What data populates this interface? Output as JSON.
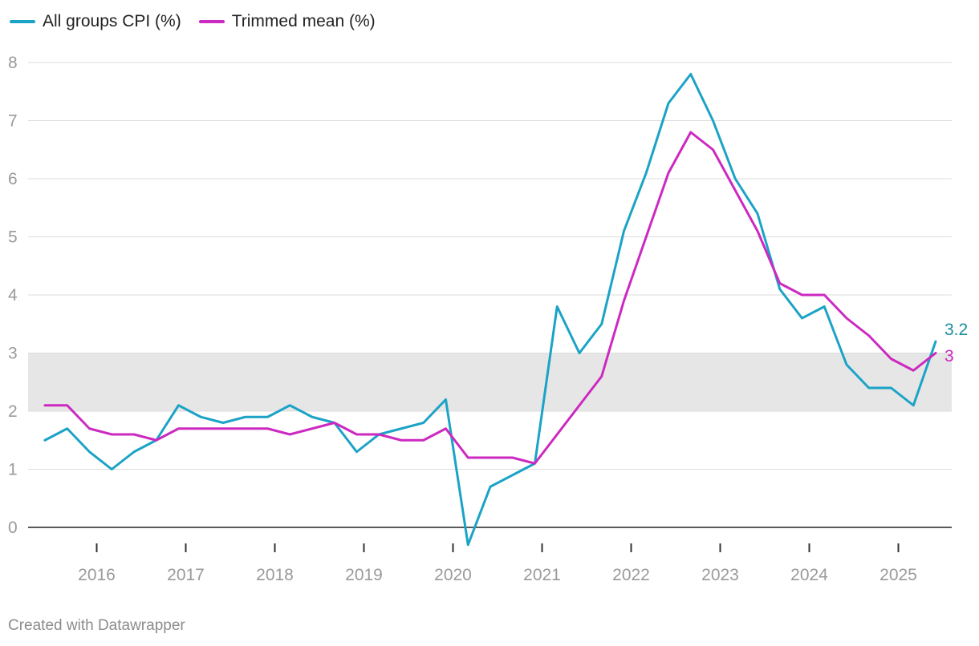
{
  "legend": [
    {
      "label": "All groups CPI (%)",
      "color": "#1ba3c6"
    },
    {
      "label": "Trimmed mean (%)",
      "color": "#cc29c0"
    }
  ],
  "footer": "Created with Datawrapper",
  "chart_data": {
    "type": "line",
    "title": "",
    "xlabel": "",
    "ylabel": "",
    "ylim": [
      0,
      8
    ],
    "y_ticks": [
      "0",
      "1",
      "2",
      "3",
      "4",
      "5",
      "6",
      "7",
      "8"
    ],
    "x_tick_labels": [
      "2016",
      "2017",
      "2018",
      "2019",
      "2020",
      "2021",
      "2022",
      "2023",
      "2024",
      "2025"
    ],
    "target_band": [
      2,
      3
    ],
    "x_start_quarter": "2015 Q3",
    "series": [
      {
        "name": "All groups CPI (%)",
        "color": "#1ba3c6",
        "end_label": "3.2",
        "end_label_color": "#1a8fa0",
        "values": [
          1.5,
          1.7,
          1.3,
          1.0,
          1.3,
          1.5,
          2.1,
          1.9,
          1.8,
          1.9,
          1.9,
          2.1,
          1.9,
          1.8,
          1.3,
          1.6,
          1.7,
          1.8,
          2.2,
          -0.3,
          0.7,
          0.9,
          1.1,
          3.8,
          3.0,
          3.5,
          5.1,
          6.1,
          7.3,
          7.8,
          7.0,
          6.0,
          5.4,
          4.1,
          3.6,
          3.8,
          2.8,
          2.4,
          2.4,
          2.1,
          3.2
        ]
      },
      {
        "name": "Trimmed mean (%)",
        "color": "#cc29c0",
        "end_label": "3",
        "end_label_color": "#cc29c0",
        "values": [
          2.1,
          2.1,
          1.7,
          1.6,
          1.6,
          1.5,
          1.7,
          1.7,
          1.7,
          1.7,
          1.7,
          1.6,
          1.7,
          1.8,
          1.6,
          1.6,
          1.5,
          1.5,
          1.7,
          1.2,
          1.2,
          1.2,
          1.1,
          1.6,
          2.1,
          2.6,
          3.9,
          5.0,
          6.1,
          6.8,
          6.5,
          5.8,
          5.1,
          4.2,
          4.0,
          4.0,
          3.6,
          3.3,
          2.9,
          2.7,
          3.0
        ]
      }
    ]
  }
}
